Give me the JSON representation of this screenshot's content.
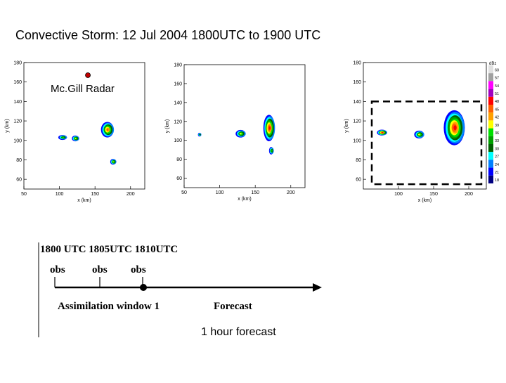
{
  "title": "Convective Storm: 12 Jul 2004 1800UTC to 1900 UTC",
  "radar_label": "Mc.Gill Radar",
  "colorbar": {
    "unit": "dBz",
    "levels": [
      "60",
      "57",
      "54",
      "51",
      "48",
      "45",
      "42",
      "39",
      "36",
      "33",
      "30",
      "27",
      "24",
      "21",
      "18"
    ],
    "colors": [
      "#e0e0e0",
      "#a0a0a0",
      "#ff00ff",
      "#a000c0",
      "#ff0000",
      "#ff6000",
      "#ffa000",
      "#ffff00",
      "#00e000",
      "#00a000",
      "#006000",
      "#00ffff",
      "#0080ff",
      "#0000ff",
      "#000080"
    ]
  },
  "chart_data": [
    {
      "type": "heatmap",
      "xlabel": "x (km)",
      "ylabel": "y (km)",
      "xticks": [
        50,
        100,
        150,
        200
      ],
      "yticks": [
        60,
        80,
        100,
        120,
        140,
        160,
        180
      ],
      "xlim": [
        50,
        220
      ],
      "ylim": [
        50,
        180
      ],
      "radar_location": [
        140,
        167
      ],
      "cells": [
        {
          "x": 105,
          "y": 103,
          "rx": 6,
          "ry": 2.5,
          "max": "36"
        },
        {
          "x": 123,
          "y": 102,
          "rx": 5,
          "ry": 3,
          "max": "39"
        },
        {
          "x": 168,
          "y": 111,
          "rx": 9,
          "ry": 8,
          "max": "45"
        },
        {
          "x": 176,
          "y": 78,
          "rx": 4,
          "ry": 3,
          "max": "39"
        }
      ]
    },
    {
      "type": "heatmap",
      "xlabel": "x (km)",
      "ylabel": "y (km)",
      "xticks": [
        50,
        100,
        150,
        200
      ],
      "yticks": [
        60,
        80,
        100,
        120,
        140,
        160,
        180
      ],
      "xlim": [
        50,
        220
      ],
      "ylim": [
        50,
        180
      ],
      "cells": [
        {
          "x": 72,
          "y": 106,
          "rx": 2,
          "ry": 2,
          "max": "33"
        },
        {
          "x": 130,
          "y": 107,
          "rx": 7,
          "ry": 4,
          "max": "39"
        },
        {
          "x": 170,
          "y": 113,
          "rx": 8,
          "ry": 14,
          "max": "48"
        },
        {
          "x": 173,
          "y": 89,
          "rx": 3,
          "ry": 4,
          "max": "36"
        }
      ]
    },
    {
      "type": "heatmap",
      "xlabel": "x (km)",
      "ylabel": "y (km)",
      "xticks": [
        100,
        150,
        200
      ],
      "yticks": [
        60,
        80,
        100,
        120,
        140,
        160,
        180
      ],
      "xlim": [
        50,
        225
      ],
      "ylim": [
        50,
        180
      ],
      "cells": [
        {
          "x": 77,
          "y": 108,
          "rx": 7,
          "ry": 3,
          "max": "48"
        },
        {
          "x": 130,
          "y": 106,
          "rx": 7,
          "ry": 4,
          "max": "39"
        },
        {
          "x": 180,
          "y": 113,
          "rx": 15,
          "ry": 18,
          "max": "48"
        }
      ],
      "dashed_box": [
        62,
        55,
        218,
        140
      ]
    }
  ],
  "timeline": {
    "times_label": "1800 UTC 1805UTC 1810UTC",
    "obs_labels": [
      "obs",
      "obs",
      "obs"
    ],
    "window_label": "Assimilation window 1",
    "forecast_label": "Forecast",
    "forecast_duration": "1 hour forecast"
  }
}
